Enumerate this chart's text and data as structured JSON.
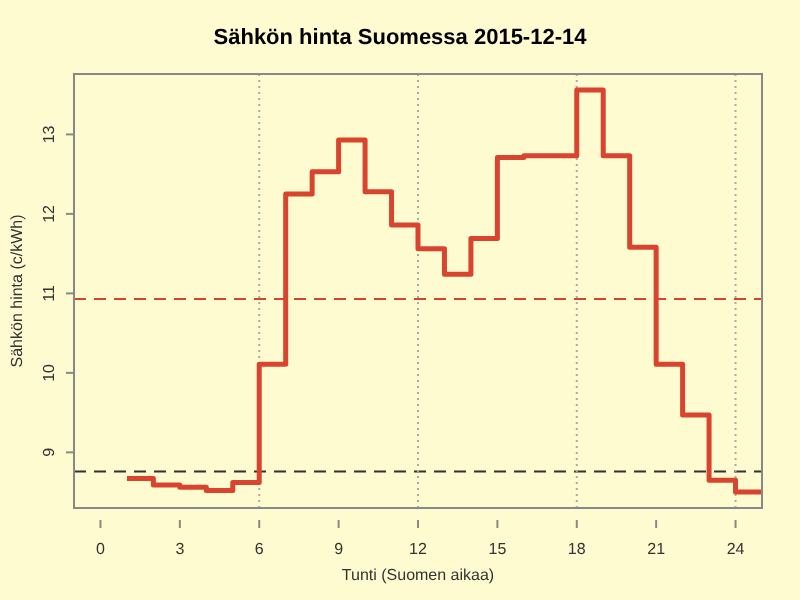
{
  "chart_data": {
    "type": "step",
    "title": "Sähkön hinta Suomessa 2015-12-14",
    "xlabel": "Tunti (Suomen aikaa)",
    "ylabel": "Sähkön hinta (c/kWh)",
    "x": [
      1,
      2,
      3,
      4,
      5,
      6,
      7,
      8,
      9,
      10,
      11,
      12,
      13,
      14,
      15,
      16,
      17,
      18,
      19,
      20,
      21,
      22,
      23,
      24,
      25
    ],
    "series": [
      {
        "color": "#d9442f",
        "values": [
          8.67,
          8.59,
          8.56,
          8.52,
          8.62,
          10.11,
          12.25,
          12.53,
          12.93,
          12.28,
          11.86,
          11.56,
          11.24,
          11.69,
          12.71,
          12.73,
          12.73,
          13.56,
          12.73,
          11.58,
          10.11,
          9.47,
          8.65,
          8.5,
          8.5
        ]
      }
    ],
    "xlim": [
      -1,
      25
    ],
    "ylim": [
      8.3,
      13.76
    ],
    "xticks": [
      0,
      3,
      6,
      9,
      12,
      15,
      18,
      21,
      24
    ],
    "yticks": [
      9,
      10,
      11,
      12,
      13
    ],
    "ref_lines": [
      {
        "axis": "y",
        "value": 10.93,
        "color": "#d9442f",
        "line_style": "dashed"
      },
      {
        "axis": "y",
        "value": 8.76,
        "color": "#333333",
        "line_style": "dashed"
      },
      {
        "axis": "x",
        "value": 6,
        "color": "#aaaaaa",
        "line_style": "dotted"
      },
      {
        "axis": "x",
        "value": 12,
        "color": "#aaaaaa",
        "line_style": "dotted"
      },
      {
        "axis": "x",
        "value": 18,
        "color": "#aaaaaa",
        "line_style": "dotted"
      },
      {
        "axis": "x",
        "value": 24,
        "color": "#aaaaaa",
        "line_style": "dotted"
      }
    ],
    "marker": "none",
    "line_style": "solid"
  }
}
